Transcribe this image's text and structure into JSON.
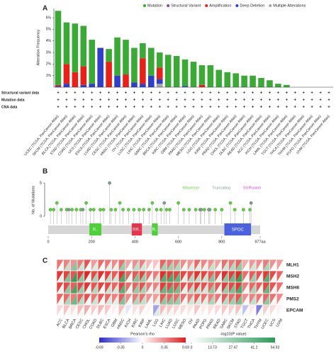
{
  "chart_data": [
    {
      "panel": "A",
      "type": "bar",
      "stacked": true,
      "y_label": "Alteration Frequency",
      "categories": [
        "UCEC (TCGA, PanCancer Atlas)",
        "SKCM (TCGA, PanCancer Atlas)",
        "BLCA (TCGA, PanCancer Atlas)",
        "STAD (TCGA, PanCancer Atlas)",
        "COAD (TCGA, PanCancer Atlas)",
        "UCS (TCGA, PanCancer Atlas)",
        "ESCA (TCGA, PanCancer Atlas)",
        "LUAD (TCGA, PanCancer Atlas)",
        "CESC (TCGA, PanCancer Atlas)",
        "HNSC (TCGA, PanCancer Atlas)",
        "OV (TCGA, PanCancer Atlas)",
        "LUSC (TCGA, PanCancer Atlas)",
        "LIHC (TCGA, PanCancer Atlas)",
        "SARC (TCGA, PanCancer Atlas)",
        "BRCA (TCGA, PanCancer Atlas)",
        "KIRC (TCGA, PanCancer Atlas)",
        "GBM (TCGA, PanCancer Atlas)",
        "PAAD (TCGA, PanCancer Atlas)",
        "MESO (TCGA, PanCancer Atlas)",
        "LGG (TCGA, PanCancer Atlas)",
        "KIRP (TCGA, PanCancer Atlas)",
        "PRAD (TCGA, PanCancer Atlas)",
        "CHOL (TCGA, PanCancer Atlas)",
        "DLBC (TCGA, PanCancer Atlas)",
        "READ (TCGA, PanCancer Atlas)",
        "ACC (TCGA, PanCancer Atlas)",
        "KICH (TCGA, PanCancer Atlas)",
        "LAML (TCGA, PanCancer Atlas)",
        "TGCT (TCGA, PanCancer Atlas)",
        "THCA (TCGA, PanCancer Atlas)",
        "THYM (TCGA, PanCancer Atlas)",
        "PCPG (TCGA, PanCancer Atlas)",
        "UVM (TCGA, PanCancer Atlas)"
      ],
      "series": [
        {
          "name": "Mutation",
          "color": "#3aa935",
          "values": [
            6.4,
            3.6,
            4.2,
            3.5,
            3.8,
            0,
            1.1,
            3.3,
            3.0,
            3.0,
            1.3,
            2.4,
            1.3,
            2.8,
            2.7,
            2.3,
            2.2,
            1.7,
            1.9,
            1.5,
            1.3,
            1.2,
            1.0,
            1.0,
            0.8,
            0.6,
            0.3,
            0.2,
            0,
            0,
            0,
            0,
            0
          ]
        },
        {
          "name": "Structural Variant",
          "color": "#8e44ad",
          "values": [
            0,
            0,
            0,
            0,
            0,
            0,
            0,
            0,
            0,
            0,
            0,
            0,
            0,
            0,
            0,
            0,
            0,
            0,
            0,
            0,
            0,
            0,
            0,
            0,
            0,
            0,
            0,
            0,
            0,
            0,
            0,
            0,
            0
          ]
        },
        {
          "name": "Amplification",
          "color": "#e8201a",
          "values": [
            0.1,
            1.7,
            1.3,
            1.6,
            0,
            0,
            2.2,
            0,
            1.1,
            0,
            2.2,
            0,
            1.0,
            0,
            0,
            0,
            0,
            0.2,
            0,
            0,
            0,
            0,
            0,
            0,
            0,
            0,
            0,
            0,
            0,
            0,
            0,
            0,
            0
          ]
        },
        {
          "name": "Deep Deletion",
          "color": "#2f3fcc",
          "values": [
            0.1,
            0.3,
            0,
            0.2,
            0.3,
            3.4,
            0,
            1.0,
            0,
            0.4,
            0.3,
            1.0,
            0.4,
            0,
            0,
            0.1,
            0,
            0,
            0,
            0,
            0,
            0,
            0,
            0,
            0,
            0,
            0,
            0,
            0,
            0,
            0,
            0,
            0
          ]
        },
        {
          "name": "Multiple Alterations",
          "color": "#a6a6a6",
          "values": [
            0,
            0,
            0,
            0,
            0,
            0,
            0,
            0,
            0,
            0,
            0,
            0,
            0.3,
            0,
            0,
            0,
            0,
            0,
            0,
            0,
            0,
            0,
            0,
            0,
            0,
            0,
            0,
            0,
            0,
            0,
            0,
            0,
            0
          ]
        }
      ],
      "ylim": [
        0,
        6.8
      ],
      "yticks": [
        {
          "value": 1,
          "label": "1%"
        },
        {
          "value": 2,
          "label": "2%"
        },
        {
          "value": 3,
          "label": "3%"
        },
        {
          "value": 4,
          "label": "4%"
        },
        {
          "value": 5,
          "label": "5%"
        },
        {
          "value": 6,
          "label": "6%"
        }
      ],
      "track_labels": [
        "Structural variant data",
        "Mutation data",
        "CNA data"
      ],
      "track_mark": "+"
    },
    {
      "panel": "B",
      "type": "lollipop",
      "y_label": "No. of Mutations",
      "series": [
        {
          "name": "Missense",
          "color": "#5fd13a",
          "x": [
            10,
            25,
            40,
            60,
            85,
            110,
            130,
            150,
            175,
            195,
            210,
            240,
            255,
            290,
            310,
            330,
            345,
            370,
            395,
            420,
            440,
            465,
            480,
            500,
            520,
            545,
            560,
            600,
            625,
            650,
            680,
            700,
            720,
            745,
            770,
            800,
            840,
            860,
            900,
            930
          ],
          "values": [
            1,
            1,
            2,
            1,
            1,
            1,
            1,
            1,
            2,
            1,
            1,
            1,
            1,
            1,
            1,
            2,
            1,
            1,
            1,
            1,
            1,
            1,
            2,
            1,
            1,
            1,
            1,
            2,
            1,
            1,
            1,
            1,
            1,
            1,
            1,
            1,
            2,
            1,
            1,
            1
          ]
        },
        {
          "name": "Truncating",
          "color": "#7f9c9a",
          "x": [
            95,
            160,
            283,
            535,
            705,
            740,
            935
          ],
          "values": [
            1,
            1,
            5,
            2,
            1,
            1,
            2
          ]
        },
        {
          "name": "SV/Fusion",
          "color": "#d63ad0",
          "x": [],
          "values": []
        }
      ],
      "xlim": [
        0,
        977
      ],
      "xticks": [
        0,
        200,
        400,
        600,
        800,
        {
          "value": 977,
          "label": "977aa"
        }
      ],
      "ylim": [
        0,
        5
      ],
      "yticks": [
        0,
        5
      ],
      "domains": [
        {
          "label": "R..",
          "start": 190,
          "end": 245,
          "color": "#4cd137"
        },
        {
          "label": "RR..",
          "start": 385,
          "end": 432,
          "color": "#e8344a"
        },
        {
          "label": "R..",
          "start": 478,
          "end": 505,
          "color": "#4cd137"
        },
        {
          "label": "SPOC",
          "start": 812,
          "end": 935,
          "color": "#4a62e0"
        }
      ]
    },
    {
      "panel": "C",
      "type": "heatmap",
      "rows": [
        "MLH1",
        "MSH2",
        "MSH6",
        "PMS2",
        "EPCAM"
      ],
      "columns": [
        "ACC",
        "BLCA",
        "BRCA",
        "CESC",
        "CHOL",
        "COAD",
        "DLBC",
        "ESCA",
        "GBM",
        "HNSC",
        "KICH",
        "KIRC",
        "KIRP",
        "LAML",
        "LGG",
        "LIHC",
        "LUAD",
        "LUSC",
        "MESO",
        "OV",
        "PAAD",
        "PCPG",
        "PRAD",
        "READ",
        "SARC",
        "SKCM",
        "STAD",
        "TGCT",
        "THCA",
        "THYM",
        "UCEC",
        "UCS",
        "UVM"
      ],
      "rho": [
        [
          0.42,
          0.38,
          0.33,
          0.4,
          0.52,
          0.3,
          0.45,
          0.41,
          0.36,
          0.44,
          0.28,
          0.34,
          0.39,
          0.22,
          0.18,
          0.48,
          0.43,
          0.39,
          0.35,
          0.31,
          0.46,
          0.37,
          0.33,
          0.29,
          0.44,
          0.41,
          0.47,
          0.26,
          0.32,
          0.35,
          0.4,
          0.34,
          0.3
        ],
        [
          0.61,
          0.58,
          0.52,
          0.6,
          0.66,
          0.55,
          0.63,
          0.59,
          0.5,
          0.62,
          0.48,
          0.51,
          0.57,
          0.45,
          0.4,
          0.64,
          0.6,
          0.58,
          0.56,
          0.53,
          0.62,
          0.57,
          0.5,
          0.54,
          0.63,
          0.59,
          0.65,
          0.44,
          0.49,
          0.52,
          0.6,
          0.55,
          0.47
        ],
        [
          0.57,
          0.55,
          0.49,
          0.56,
          0.62,
          0.52,
          0.58,
          0.55,
          0.47,
          0.58,
          0.45,
          0.48,
          0.53,
          0.41,
          0.38,
          0.6,
          0.56,
          0.54,
          0.52,
          0.5,
          0.58,
          0.53,
          0.47,
          0.51,
          0.59,
          0.55,
          0.61,
          0.4,
          0.46,
          0.49,
          0.57,
          0.52,
          0.44
        ],
        [
          0.48,
          0.45,
          0.4,
          0.47,
          0.53,
          0.42,
          0.5,
          0.46,
          0.39,
          0.49,
          0.36,
          0.41,
          0.44,
          0.33,
          0.3,
          0.51,
          0.47,
          0.45,
          0.43,
          0.4,
          0.49,
          0.44,
          0.39,
          0.42,
          0.5,
          0.46,
          0.52,
          0.34,
          0.38,
          0.41,
          0.47,
          0.43,
          0.36
        ],
        [
          0.12,
          0.18,
          0.1,
          0.2,
          0.25,
          0.15,
          0.22,
          0.17,
          0.05,
          0.19,
          -0.08,
          0.09,
          0.14,
          0.03,
          -0.3,
          0.21,
          0.16,
          0.13,
          0.11,
          0.08,
          0.18,
          0.06,
          0.1,
          0.12,
          0.17,
          0.14,
          0.19,
          -0.2,
          0.07,
          -0.42,
          0.15,
          0.11,
          0.04
        ]
      ],
      "log_p": [
        [
          3.2,
          16.5,
          31.8,
          14.2,
          2.9,
          9.4,
          2.1,
          7.8,
          6.5,
          27.4,
          2.4,
          17.6,
          12.3,
          2.5,
          4.1,
          24.8,
          25.3,
          21.0,
          3.6,
          9.8,
          8.6,
          6.4,
          15.7,
          2.7,
          13.2,
          20.6,
          28.9,
          1.9,
          12.4,
          2.6,
          22.7,
          2.0,
          1.4
        ],
        [
          7.5,
          33.1,
          52.6,
          30.4,
          6.0,
          23.5,
          4.3,
          17.2,
          12.8,
          48.3,
          5.6,
          31.9,
          27.4,
          5.7,
          11.2,
          44.6,
          47.5,
          40.7,
          7.9,
          21.3,
          18.4,
          14.0,
          32.6,
          6.5,
          30.2,
          38.9,
          51.8,
          4.2,
          26.3,
          5.8,
          43.9,
          4.4,
          3.0
        ],
        [
          6.4,
          29.6,
          48.7,
          27.1,
          5.3,
          21.0,
          3.7,
          15.3,
          11.4,
          43.5,
          4.9,
          28.0,
          24.2,
          5.0,
          10.1,
          40.1,
          42.6,
          36.3,
          6.9,
          19.4,
          16.6,
          12.4,
          29.2,
          5.8,
          27.3,
          35.0,
          46.9,
          3.6,
          23.0,
          5.1,
          39.8,
          3.9,
          2.6
        ],
        [
          4.3,
          21.5,
          38.6,
          19.4,
          3.6,
          14.2,
          2.6,
          10.9,
          8.2,
          33.0,
          3.4,
          21.3,
          16.8,
          3.5,
          7.0,
          29.7,
          31.2,
          27.0,
          4.6,
          13.4,
          11.7,
          8.6,
          22.4,
          3.9,
          19.7,
          26.1,
          35.4,
          2.5,
          16.9,
          3.4,
          29.6,
          2.7,
          1.8
        ],
        [
          0.4,
          2.7,
          2.5,
          3.6,
          0.9,
          1.5,
          0.6,
          1.7,
          0.2,
          3.0,
          0.3,
          1.2,
          1.6,
          0.1,
          9.6,
          3.8,
          3.0,
          2.1,
          0.4,
          1.1,
          1.9,
          0.3,
          1.4,
          0.6,
          1.6,
          2.1,
          3.4,
          2.3,
          1.0,
          2.4,
          2.3,
          0.2,
          0.1
        ]
      ],
      "rho_label": "Pearson's rho",
      "rho_lim": [
        -0.69,
        0.69
      ],
      "rho_ticks": [
        -0.69,
        -0.35,
        0,
        0.35,
        0.69
      ],
      "p_label": "-log10(P value)",
      "p_lim": [
        0,
        54.93
      ],
      "p_ticks": [
        0,
        13.73,
        27.47,
        41.2,
        54.93
      ]
    }
  ]
}
